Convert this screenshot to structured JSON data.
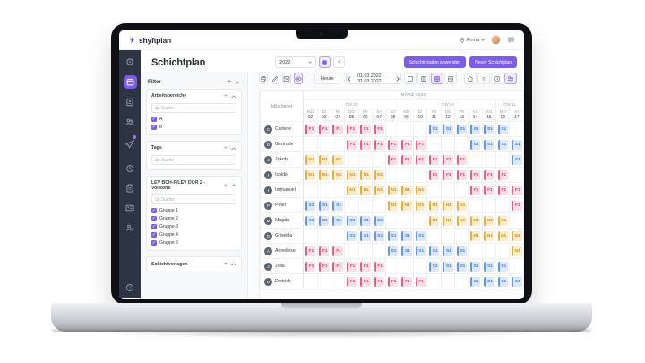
{
  "theme": {
    "accent": "#7c5cf0",
    "accent_soft": "#efeafd",
    "accent_border": "#b3a0f7",
    "nav_bg": "#2d3444"
  },
  "topbar": {
    "logo": "shyftplan",
    "company": "Firma",
    "icons": [
      "location-pin-icon",
      "chevron-down-icon",
      "user-avatar",
      "chat-icon"
    ]
  },
  "sidebar_nav_icons": [
    "dashboard-icon",
    "calendar-icon",
    "id-badge-icon",
    "users-icon",
    "airplane-icon",
    "clock-icon",
    "clipboard-icon",
    "id-card-icon",
    "user-star-icon",
    "help-icon"
  ],
  "page": {
    "title": "Schichtplan",
    "year": "2022"
  },
  "actions": {
    "apply_rotation": "Schichtrotation anwenden",
    "new_plan": "Neuer Schichtplan",
    "today": "Heute",
    "date_range": "01.03.2022 - 31.03.2022"
  },
  "toolbar_icons": [
    "printer-icon",
    "pencil-icon",
    "mail-icon",
    "eye-icon",
    "view-day-icon",
    "view-week-icon",
    "view-month-icon",
    "view-list-icon",
    "home-icon",
    "euro-icon",
    "clock-icon",
    "people-icon"
  ],
  "filters": {
    "label": "Filter",
    "sections": [
      {
        "title": "Arbeitsbereiche",
        "search": "Suche",
        "options": [
          "A",
          "B"
        ]
      },
      {
        "title": "Tags",
        "search": "Suche",
        "options": []
      },
      {
        "title": "LEV BCH-P/LEV DOR 2 - Vollkonti",
        "search": "Suche",
        "options": [
          "Gruppe 1",
          "Gruppe 2",
          "Gruppe 3",
          "Gruppe 4",
          "Gruppe 5"
        ]
      },
      {
        "title": "Schichtvorlagen"
      }
    ]
  },
  "calendar": {
    "month": "MÄRZ 2022",
    "employee_column": "Mitarbeiter",
    "weeks": [
      {
        "label": "CW 09",
        "span": 7
      },
      {
        "label": "CW 10",
        "span": 7
      },
      {
        "label": "CW 11",
        "span": 2
      }
    ],
    "days": [
      {
        "dow": "MO",
        "date": "02"
      },
      {
        "dow": "DI",
        "date": "03"
      },
      {
        "dow": "MI",
        "date": "04"
      },
      {
        "dow": "DO",
        "date": "05"
      },
      {
        "dow": "FR",
        "date": "06"
      },
      {
        "dow": "SA",
        "date": "07"
      },
      {
        "dow": "SO",
        "date": "08"
      },
      {
        "dow": "MO",
        "date": "09"
      },
      {
        "dow": "DI",
        "date": "10"
      },
      {
        "dow": "MI",
        "date": "11"
      },
      {
        "dow": "DO",
        "date": "12"
      },
      {
        "dow": "FR",
        "date": "13"
      },
      {
        "dow": "SA",
        "date": "14"
      },
      {
        "dow": "SO",
        "date": "15"
      },
      {
        "dow": "MO",
        "date": "16"
      },
      {
        "dow": "DI",
        "date": "17"
      }
    ],
    "shift_types": {
      "F1": {
        "bg": "#fcdfe7",
        "border": "#ee5c81",
        "text": "#d8476f"
      },
      "S1": {
        "bg": "#dae8fc",
        "border": "#6394ee",
        "text": "#4579dd"
      },
      "N1": {
        "bg": "#fdeecb",
        "border": "#f2aa3f",
        "text": "#d28d13"
      }
    },
    "employees": [
      {
        "name": "Carlene",
        "shifts": [
          "F1",
          "F1",
          "F1",
          "F1",
          "F1",
          "F1",
          "",
          "",
          "",
          "S1",
          "S1",
          "S1",
          "S1",
          "S1",
          "S1",
          ""
        ]
      },
      {
        "name": "Gertrude",
        "shifts": [
          "",
          "",
          "",
          "F1",
          "F1",
          "F1",
          "F1",
          "F1",
          "F1",
          "",
          "",
          "",
          "S1",
          "S1",
          "S1",
          "S1"
        ]
      },
      {
        "name": "Jakob",
        "shifts": [
          "N1",
          "N1",
          "N1",
          "",
          "",
          "",
          "F1",
          "F1",
          "F1",
          "F1",
          "F1",
          "F1",
          "",
          "",
          "",
          "S1"
        ]
      },
      {
        "name": "Isolde",
        "shifts": [
          "N1",
          "N1",
          "N1",
          "N1",
          "N1",
          "N1",
          "",
          "",
          "",
          "F1",
          "F1",
          "F1",
          "F1",
          "F1",
          "F1",
          ""
        ]
      },
      {
        "name": "Immanuel",
        "shifts": [
          "",
          "",
          "",
          "N1",
          "N1",
          "N1",
          "N1",
          "N1",
          "N1",
          "",
          "",
          "",
          "F1",
          "F1",
          "F1",
          "F1"
        ]
      },
      {
        "name": "Peter",
        "shifts": [
          "S1",
          "S1",
          "S1",
          "",
          "",
          "",
          "N1",
          "N1",
          "N1",
          "N1",
          "N1",
          "N1",
          "",
          "",
          "",
          "F1"
        ]
      },
      {
        "name": "Magda",
        "shifts": [
          "S1",
          "S1",
          "S1",
          "S1",
          "S1",
          "S1",
          "",
          "",
          "",
          "N1",
          "N1",
          "N1",
          "N1",
          "N1",
          "N1",
          ""
        ]
      },
      {
        "name": "Griselda",
        "shifts": [
          "",
          "",
          "",
          "S1",
          "S1",
          "S1",
          "S1",
          "S1",
          "S1",
          "",
          "",
          "",
          "N1",
          "N1",
          "N1",
          "N1"
        ]
      },
      {
        "name": "Anneliese",
        "shifts": [
          "F1",
          "F1",
          "F1",
          "",
          "",
          "",
          "S1",
          "S1",
          "S1",
          "S1",
          "S1",
          "S1",
          "",
          "",
          "",
          "N1"
        ]
      },
      {
        "name": "Julia",
        "shifts": [
          "F1",
          "F1",
          "F1",
          "F1",
          "F1",
          "F1",
          "",
          "",
          "",
          "S1",
          "S1",
          "S1",
          "S1",
          "S1",
          "S1",
          ""
        ]
      },
      {
        "name": "Dietrich",
        "shifts": [
          "",
          "",
          "",
          "F1",
          "F1",
          "F1",
          "F1",
          "F1",
          "F1",
          "",
          "",
          "",
          "S1",
          "S1",
          "S1",
          "S1"
        ]
      }
    ]
  }
}
